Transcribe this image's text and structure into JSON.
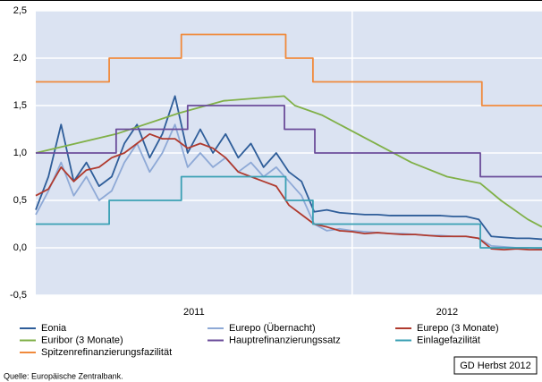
{
  "chart_data": {
    "type": "line",
    "source": "Quelle: Europäische Zentralbank.",
    "annotation": "GD Herbst 2012",
    "xlim": [
      2011,
      2012.6
    ],
    "xticks": [
      {
        "value": 2011,
        "label": "2011"
      },
      {
        "value": 2012,
        "label": "2012"
      }
    ],
    "ylim": [
      -0.5,
      2.5
    ],
    "yticks": [
      {
        "value": 2.5,
        "label": "2,5"
      },
      {
        "value": 2.0,
        "label": "2,0"
      },
      {
        "value": 1.5,
        "label": "1,5"
      },
      {
        "value": 1.0,
        "label": "1,0"
      },
      {
        "value": 0.5,
        "label": "0,5"
      },
      {
        "value": 0.0,
        "label": "0,0"
      },
      {
        "value": -0.5,
        "label": "-0,5"
      }
    ],
    "grid": true,
    "x": [
      2011.0,
      2011.04,
      2011.08,
      2011.12,
      2011.16,
      2011.2,
      2011.24,
      2011.28,
      2011.32,
      2011.36,
      2011.4,
      2011.44,
      2011.48,
      2011.52,
      2011.56,
      2011.6,
      2011.64,
      2011.68,
      2011.72,
      2011.76,
      2011.8,
      2011.84,
      2011.88,
      2011.92,
      2011.96,
      2012.0,
      2012.04,
      2012.08,
      2012.12,
      2012.16,
      2012.2,
      2012.24,
      2012.28,
      2012.32,
      2012.36,
      2012.4,
      2012.44,
      2012.48,
      2012.52,
      2012.56,
      2012.6
    ],
    "series": [
      {
        "name": "Eonia",
        "color": "#2e5d99",
        "values": [
          0.4,
          0.75,
          1.3,
          0.7,
          0.9,
          0.65,
          0.75,
          1.1,
          1.3,
          0.95,
          1.2,
          1.6,
          1.0,
          1.25,
          1.0,
          1.2,
          0.95,
          1.1,
          0.85,
          1.0,
          0.8,
          0.7,
          0.38,
          0.4,
          0.37,
          0.36,
          0.35,
          0.35,
          0.34,
          0.34,
          0.34,
          0.34,
          0.34,
          0.33,
          0.33,
          0.3,
          0.12,
          0.11,
          0.1,
          0.1,
          0.09
        ]
      },
      {
        "name": "Eurepo (Übernacht)",
        "color": "#8ea9d6",
        "values": [
          0.35,
          0.6,
          0.9,
          0.55,
          0.75,
          0.5,
          0.6,
          0.9,
          1.1,
          0.8,
          1.0,
          1.3,
          0.85,
          1.0,
          0.85,
          0.95,
          0.8,
          0.9,
          0.75,
          0.85,
          0.7,
          0.55,
          0.25,
          0.18,
          0.2,
          0.18,
          0.17,
          0.16,
          0.15,
          0.15,
          0.14,
          0.13,
          0.13,
          0.12,
          0.12,
          0.1,
          0.02,
          0.01,
          0.0,
          0.0,
          -0.01
        ]
      },
      {
        "name": "Eurepo (3 Monate)",
        "color": "#b03a2e",
        "values": [
          0.55,
          0.62,
          0.85,
          0.7,
          0.82,
          0.85,
          0.95,
          1.0,
          1.1,
          1.2,
          1.15,
          1.15,
          1.05,
          1.1,
          1.05,
          0.95,
          0.8,
          0.75,
          0.7,
          0.65,
          0.45,
          0.35,
          0.25,
          0.22,
          0.18,
          0.17,
          0.15,
          0.16,
          0.15,
          0.14,
          0.14,
          0.13,
          0.12,
          0.12,
          0.12,
          0.1,
          -0.01,
          -0.02,
          -0.01,
          -0.02,
          -0.02
        ]
      },
      {
        "name": "Euribor (3 Monate)",
        "color": "#80b048",
        "x": [
          2011.0,
          2011.254,
          2011.452,
          2011.593,
          2011.785,
          2011.819,
          2011.904,
          2012.074,
          2012.187,
          2012.3,
          2012.405,
          2012.47,
          2012.555,
          2012.6
        ],
        "values": [
          1.0,
          1.2,
          1.42,
          1.55,
          1.6,
          1.5,
          1.4,
          1.1,
          0.9,
          0.75,
          0.68,
          0.5,
          0.3,
          0.22
        ]
      },
      {
        "name": "Hauptrefinanzierungssatz",
        "color": "#6b4c9a",
        "x": [
          2011.0,
          2011.254,
          2011.254,
          2011.48,
          2011.48,
          2011.786,
          2011.786,
          2011.882,
          2011.882,
          2012.405,
          2012.405,
          2012.6
        ],
        "values": [
          1.0,
          1.0,
          1.25,
          1.25,
          1.5,
          1.5,
          1.25,
          1.25,
          1.0,
          1.0,
          0.75,
          0.75
        ]
      },
      {
        "name": "Einlagefazilität",
        "color": "#3aa0b4",
        "x": [
          2011.0,
          2011.232,
          2011.232,
          2011.46,
          2011.46,
          2011.79,
          2011.79,
          2011.876,
          2011.876,
          2012.405,
          2012.405,
          2012.6
        ],
        "values": [
          0.25,
          0.25,
          0.5,
          0.5,
          0.75,
          0.75,
          0.5,
          0.5,
          0.25,
          0.25,
          0.0,
          0.0
        ]
      },
      {
        "name": "Spitzenrefinanzierungsfazilität",
        "color": "#f08a3c",
        "x": [
          2011.0,
          2011.232,
          2011.232,
          2011.46,
          2011.46,
          2011.79,
          2011.79,
          2011.876,
          2011.876,
          2012.41,
          2012.41,
          2012.6
        ],
        "values": [
          1.75,
          1.75,
          2.0,
          2.0,
          2.25,
          2.25,
          2.0,
          2.0,
          1.75,
          1.75,
          1.5,
          1.5
        ]
      }
    ]
  }
}
